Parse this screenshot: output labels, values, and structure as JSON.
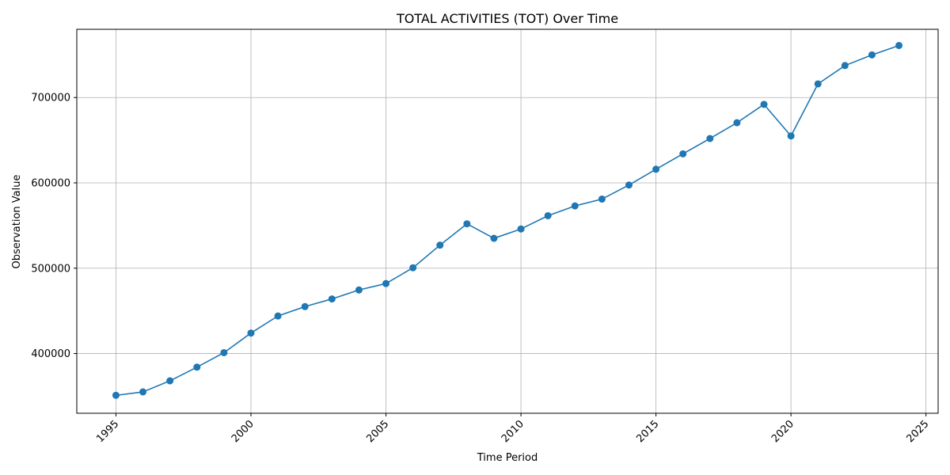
{
  "chart_data": {
    "type": "line",
    "title": "TOTAL ACTIVITIES (TOT) Over Time",
    "xlabel": "Time Period",
    "ylabel": "Observation Value",
    "xlim": [
      1993.55,
      2025.45
    ],
    "ylim": [
      330000,
      780000
    ],
    "x_ticks": [
      1995,
      2000,
      2005,
      2010,
      2015,
      2020,
      2025
    ],
    "y_ticks": [
      400000,
      500000,
      600000,
      700000
    ],
    "grid": true,
    "legend": "none",
    "series": [
      {
        "color": "#1f77b4",
        "marker": "circle",
        "x": [
          1995,
          1996,
          1997,
          1998,
          1999,
          2000,
          2001,
          2002,
          2003,
          2004,
          2005,
          2006,
          2007,
          2008,
          2009,
          2010,
          2011,
          2012,
          2013,
          2014,
          2015,
          2016,
          2017,
          2018,
          2019,
          2020,
          2021,
          2022,
          2023,
          2024
        ],
        "y": [
          351000,
          355000,
          368000,
          384000,
          401000,
          424000,
          444000,
          455000,
          464000,
          474500,
          482000,
          500500,
          527000,
          552000,
          535000,
          546000,
          561500,
          573000,
          581000,
          597500,
          616000,
          634000,
          652000,
          670500,
          692000,
          655000,
          716000,
          737500,
          750000,
          761000
        ]
      }
    ]
  }
}
